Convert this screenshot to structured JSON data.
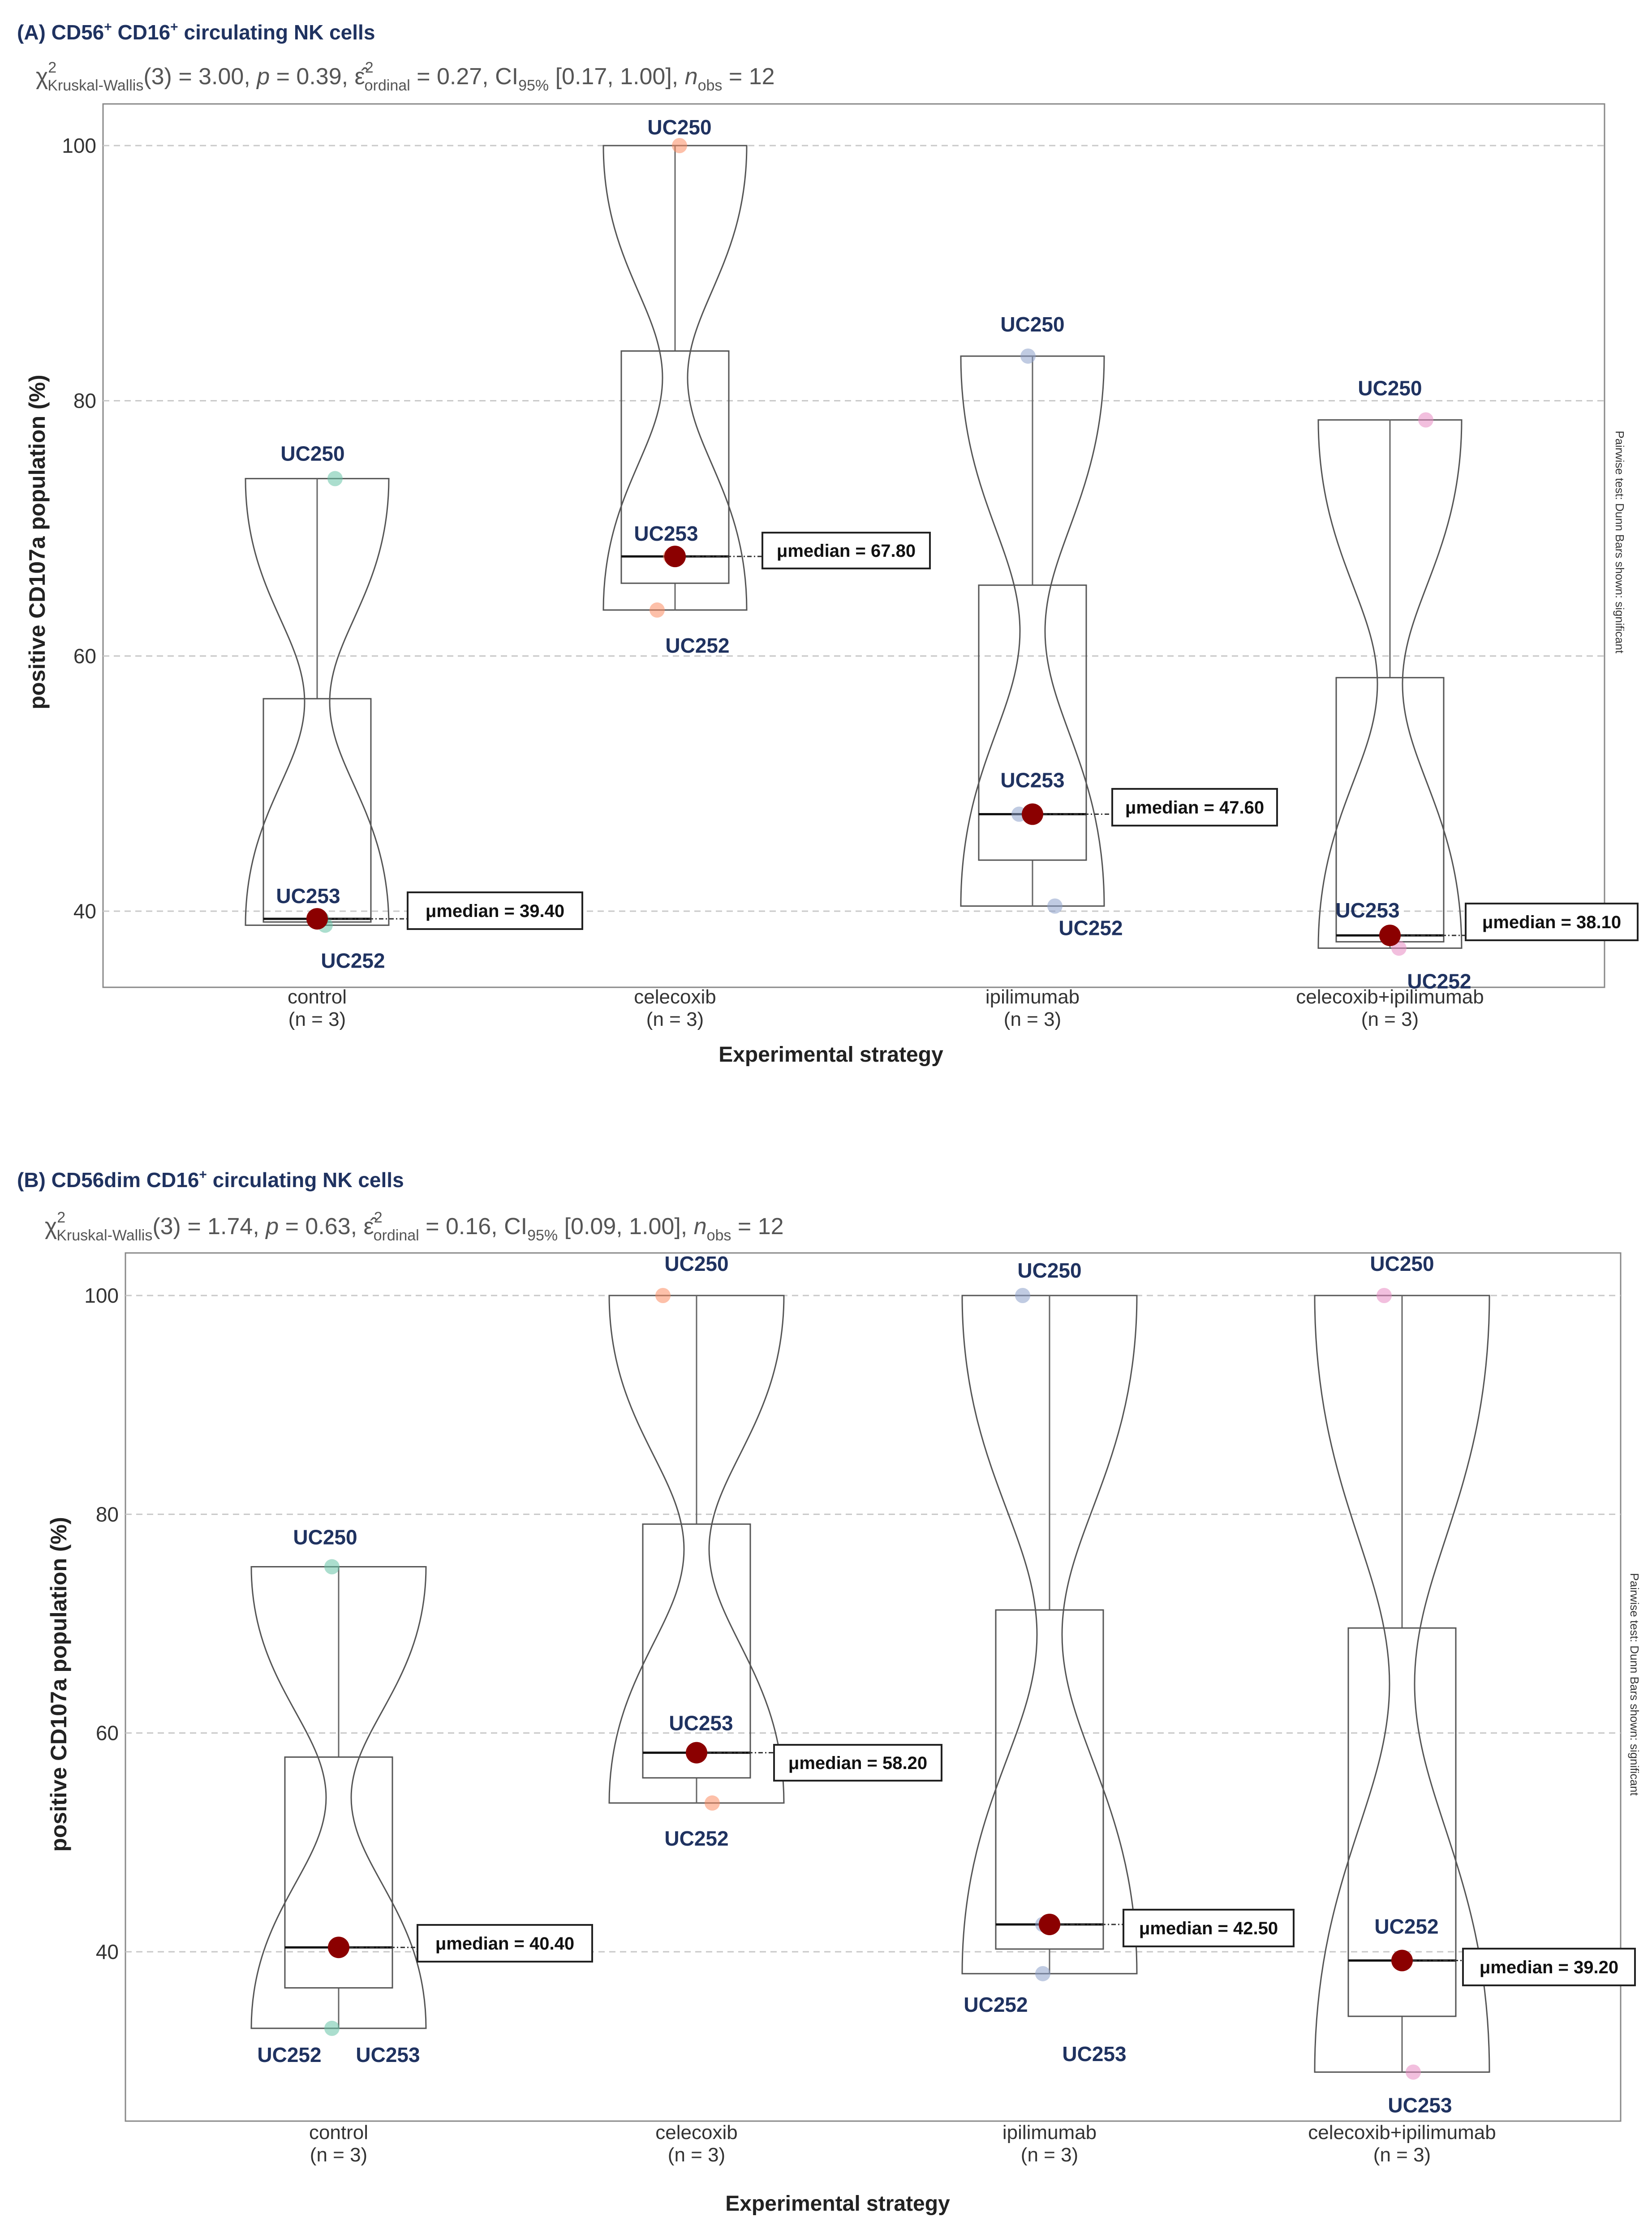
{
  "chart_data": [
    {
      "type": "violin-box",
      "title": "(A) CD56+ CD16+ circulating NK cells",
      "subtitle": "χ²Kruskal-Wallis(3) = 3.00, p = 0.39, ε̂²ordinal = 0.27, CI95% [0.17, 1.00], nobs = 12",
      "xlabel": "Experimental strategy",
      "ylabel": "positive CD107a population (%)",
      "ylim": [
        34,
        103.5
      ],
      "yticks": [
        40,
        60,
        80,
        100
      ],
      "side_note": "Pairwise test: Dunn Bars shown: significant",
      "groups": [
        {
          "name": "control",
          "n_label": "(n = 3)",
          "color": "#66c2a5",
          "points": [
            {
              "label": "UC250",
              "value": 73.9
            },
            {
              "label": "UC253",
              "value": 39.4
            },
            {
              "label": "UC252",
              "value": 38.9
            }
          ],
          "median": 39.4,
          "median_label": "μmedian = 39.40"
        },
        {
          "name": "celecoxib",
          "n_label": "(n = 3)",
          "color": "#fc8d62",
          "points": [
            {
              "label": "UC250",
              "value": 100.0
            },
            {
              "label": "UC253",
              "value": 67.8
            },
            {
              "label": "UC252",
              "value": 63.6
            }
          ],
          "median": 67.8,
          "median_label": "μmedian = 67.80"
        },
        {
          "name": "ipilimumab",
          "n_label": "(n = 3)",
          "color": "#8da0cb",
          "points": [
            {
              "label": "UC250",
              "value": 83.5
            },
            {
              "label": "UC253",
              "value": 47.6
            },
            {
              "label": "UC252",
              "value": 40.4
            }
          ],
          "median": 47.6,
          "median_label": "μmedian = 47.60"
        },
        {
          "name": "celecoxib+ipilimumab",
          "n_label": "(n = 3)",
          "color": "#e78ac3",
          "points": [
            {
              "label": "UC250",
              "value": 78.5
            },
            {
              "label": "UC253",
              "value": 38.1
            },
            {
              "label": "UC252",
              "value": 37.1
            }
          ],
          "median": 38.1,
          "median_label": "μmedian = 38.10"
        }
      ]
    },
    {
      "type": "violin-box",
      "title": "(B) CD56dim CD16+ circulating NK cells",
      "subtitle": "χ²Kruskal-Wallis(3) = 1.74, p = 0.63, ε̂²ordinal = 0.16, CI95% [0.09, 1.00], nobs = 12",
      "xlabel": "Experimental strategy",
      "ylabel": "positive CD107a population (%)",
      "ylim": [
        25,
        103
      ],
      "yticks": [
        40,
        60,
        80,
        100
      ],
      "side_note": "Pairwise test: Dunn Bars shown: significant",
      "groups": [
        {
          "name": "control",
          "n_label": "(n = 3)",
          "color": "#66c2a5",
          "points": [
            {
              "label": "UC250",
              "value": 75.2
            },
            {
              "label": "UC253",
              "value": 40.4
            },
            {
              "label": "UC252",
              "value": 33.0
            }
          ],
          "median": 40.4,
          "median_label": "μmedian = 40.40"
        },
        {
          "name": "celecoxib",
          "n_label": "(n = 3)",
          "color": "#fc8d62",
          "points": [
            {
              "label": "UC250",
              "value": 100.0
            },
            {
              "label": "UC253",
              "value": 58.2
            },
            {
              "label": "UC252",
              "value": 53.6
            }
          ],
          "median": 58.2,
          "median_label": "μmedian = 58.20"
        },
        {
          "name": "ipilimumab",
          "n_label": "(n = 3)",
          "color": "#8da0cb",
          "points": [
            {
              "label": "UC250",
              "value": 100.0
            },
            {
              "label": "UC252",
              "value": 42.5
            },
            {
              "label": "UC253",
              "value": 38.0
            }
          ],
          "median": 42.5,
          "median_label": "μmedian = 42.50"
        },
        {
          "name": "celecoxib+ipilimumab",
          "n_label": "(n = 3)",
          "color": "#e78ac3",
          "points": [
            {
              "label": "UC250",
              "value": 100.0
            },
            {
              "label": "UC252",
              "value": 39.2
            },
            {
              "label": "UC253",
              "value": 29.0
            }
          ],
          "median": 39.2,
          "median_label": "μmedian = 39.20"
        }
      ]
    }
  ]
}
